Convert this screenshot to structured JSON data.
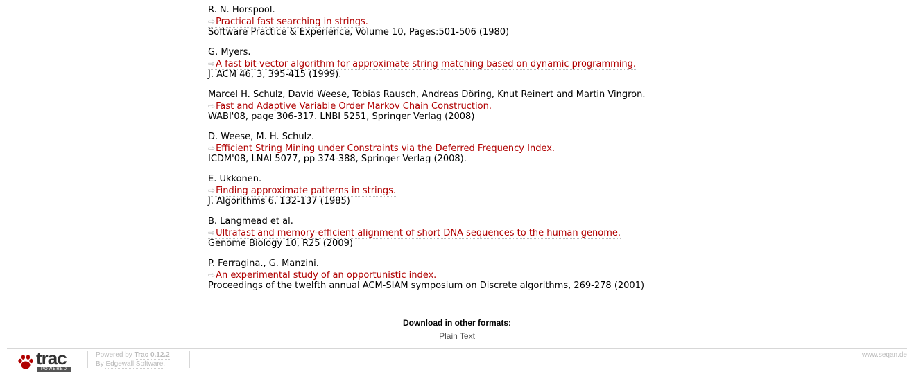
{
  "references": [
    {
      "authors": "R. N. Horspool.",
      "title": "Practical fast searching in strings.",
      "source": "Software Practice & Experience, Volume 10, Pages:501-506 (1980)"
    },
    {
      "authors": "G. Myers.",
      "title": "A fast bit-vector algorithm for approximate string matching based on dynamic programming.",
      "source": "J. ACM 46, 3, 395-415 (1999)."
    },
    {
      "authors": "Marcel H. Schulz, David Weese, Tobias Rausch, Andreas Döring, Knut Reinert and Martin Vingron.",
      "title": "Fast and Adaptive Variable Order Markov Chain Construction.",
      "source": "WABI'08, page 306-317. LNBI 5251, Springer Verlag (2008)"
    },
    {
      "authors": "D. Weese, M. H. Schulz.",
      "title": "Efficient String Mining under Constraints via the Deferred Frequency Index.",
      "source": "ICDM'08, LNAI 5077, pp 374-388, Springer Verlag (2008)."
    },
    {
      "authors": "E. Ukkonen.",
      "title": "Finding approximate patterns in strings.",
      "source": "J. Algorithms 6, 132-137 (1985)"
    },
    {
      "authors": "B. Langmead et al.",
      "title": "Ultrafast and memory-efficient alignment of short DNA sequences to the human genome.",
      "source": "Genome Biology 10, R25 (2009)"
    },
    {
      "authors": "P. Ferragina., G. Manzini.",
      "title": "An experimental study of an opportunistic index.",
      "source": "Proceedings of the twelfth annual ACM-SIAM symposium on Discrete algorithms, 269-278 (2001)"
    }
  ],
  "external_link_arrow": "⇨",
  "downloads": {
    "heading": "Download in other formats:",
    "formats": [
      "Plain Text"
    ]
  },
  "footer": {
    "logo_text": "trac",
    "logo_badge": "POWERED",
    "powered_by_prefix": "Powered by ",
    "trac_version": "Trac 0.12.2",
    "by_prefix": "By ",
    "vendor": "Edgewall Software",
    "vendor_suffix": ".",
    "site_link": "www.seqan.de"
  },
  "colors": {
    "link": "#b00000",
    "muted": "#bbbbbb",
    "paw": "#b00000"
  }
}
